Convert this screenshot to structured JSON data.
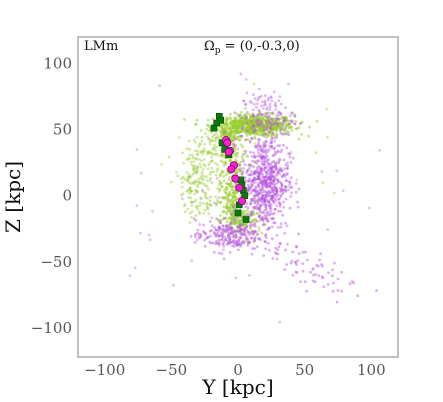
{
  "chart_data": {
    "type": "scatter",
    "xlabel": "Y [kpc]",
    "ylabel": "Z [kpc]",
    "xlim": [
      -120,
      120
    ],
    "ylim": [
      -122,
      120
    ],
    "xticks": [
      -100,
      -50,
      0,
      50,
      100
    ],
    "yticks": [
      -100,
      -50,
      0,
      50,
      100
    ],
    "xtick_labels": [
      "−100",
      "−50",
      "0",
      "50",
      "100"
    ],
    "ytick_labels": [
      "−100",
      "−50",
      "0",
      "50",
      "100"
    ],
    "grid": false,
    "annotations": {
      "corner_label": "LMm",
      "omega_symbol": "Ω",
      "omega_subscript": "p",
      "omega_value": " = (0,-0.3,0)"
    },
    "colors": {
      "green_particles": "#9acd32",
      "purple_particles": "#b450e0",
      "green_squares": "#0a7a0a",
      "magenta_circles": "#ff1fd2",
      "magenta_edge": "#7a0070",
      "frame": "#b0b0b0"
    },
    "series": [
      {
        "marker": "square",
        "x": [
          -14,
          -13,
          -16,
          -18,
          -12,
          -10,
          -7,
          2,
          3,
          4,
          5,
          1,
          0,
          6
        ],
        "y": [
          60,
          57,
          55,
          51,
          40,
          35,
          31,
          12,
          8,
          4,
          0,
          -7,
          -13,
          -18
        ]
      },
      {
        "marker": "circle",
        "x": [
          -9,
          -8,
          -6,
          -7,
          -3,
          -5,
          -2,
          1,
          3
        ],
        "y": [
          42,
          40,
          34,
          33,
          23,
          20,
          13,
          6,
          -4
        ]
      }
    ]
  }
}
